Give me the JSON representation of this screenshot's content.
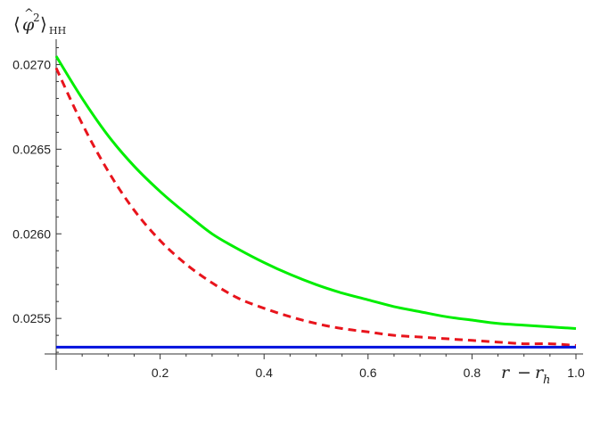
{
  "chart_data": {
    "type": "line",
    "title": "",
    "xlabel": "r − r_h",
    "ylabel": "⟨φ̂²⟩_HH",
    "xlim": [
      0,
      1.0
    ],
    "ylim": [
      0.02529,
      0.02715
    ],
    "x_ticks": [
      0.2,
      0.4,
      0.6,
      0.8,
      1.0
    ],
    "x_tick_labels": [
      "0.2",
      "0.4",
      "0.6",
      "0.8",
      "1.0"
    ],
    "y_ticks": [
      0.0255,
      0.026,
      0.0265,
      0.027
    ],
    "y_tick_labels": [
      "0.0255",
      "0.0260",
      "0.0265",
      "0.0270"
    ],
    "grid": false,
    "legend": "none",
    "series": [
      {
        "color": "#00ee00",
        "style": "solid",
        "x": [
          0,
          0.05,
          0.1,
          0.15,
          0.2,
          0.25,
          0.3,
          0.35,
          0.4,
          0.45,
          0.5,
          0.55,
          0.6,
          0.65,
          0.7,
          0.75,
          0.8,
          0.85,
          0.9,
          0.95,
          1.0
        ],
        "y": [
          0.02705,
          0.0268,
          0.02658,
          0.0264,
          0.02625,
          0.02612,
          0.026,
          0.02591,
          0.02583,
          0.02576,
          0.0257,
          0.02565,
          0.02561,
          0.02557,
          0.02554,
          0.02551,
          0.02549,
          0.02547,
          0.02546,
          0.02545,
          0.02544
        ]
      },
      {
        "color": "#e8141c",
        "style": "dashed",
        "x": [
          0,
          0.05,
          0.1,
          0.15,
          0.2,
          0.25,
          0.3,
          0.35,
          0.4,
          0.45,
          0.5,
          0.55,
          0.6,
          0.65,
          0.7,
          0.75,
          0.8,
          0.85,
          0.9,
          0.95,
          1.0
        ],
        "y": [
          0.02698,
          0.02665,
          0.02637,
          0.02614,
          0.02596,
          0.02582,
          0.02571,
          0.02562,
          0.02556,
          0.02551,
          0.02547,
          0.02544,
          0.02542,
          0.0254,
          0.02539,
          0.02538,
          0.02537,
          0.02536,
          0.02535,
          0.02535,
          0.02534
        ]
      },
      {
        "color": "#0011dd",
        "style": "solid",
        "x": [
          0,
          1.0
        ],
        "y": [
          0.02533,
          0.02533
        ]
      }
    ]
  }
}
